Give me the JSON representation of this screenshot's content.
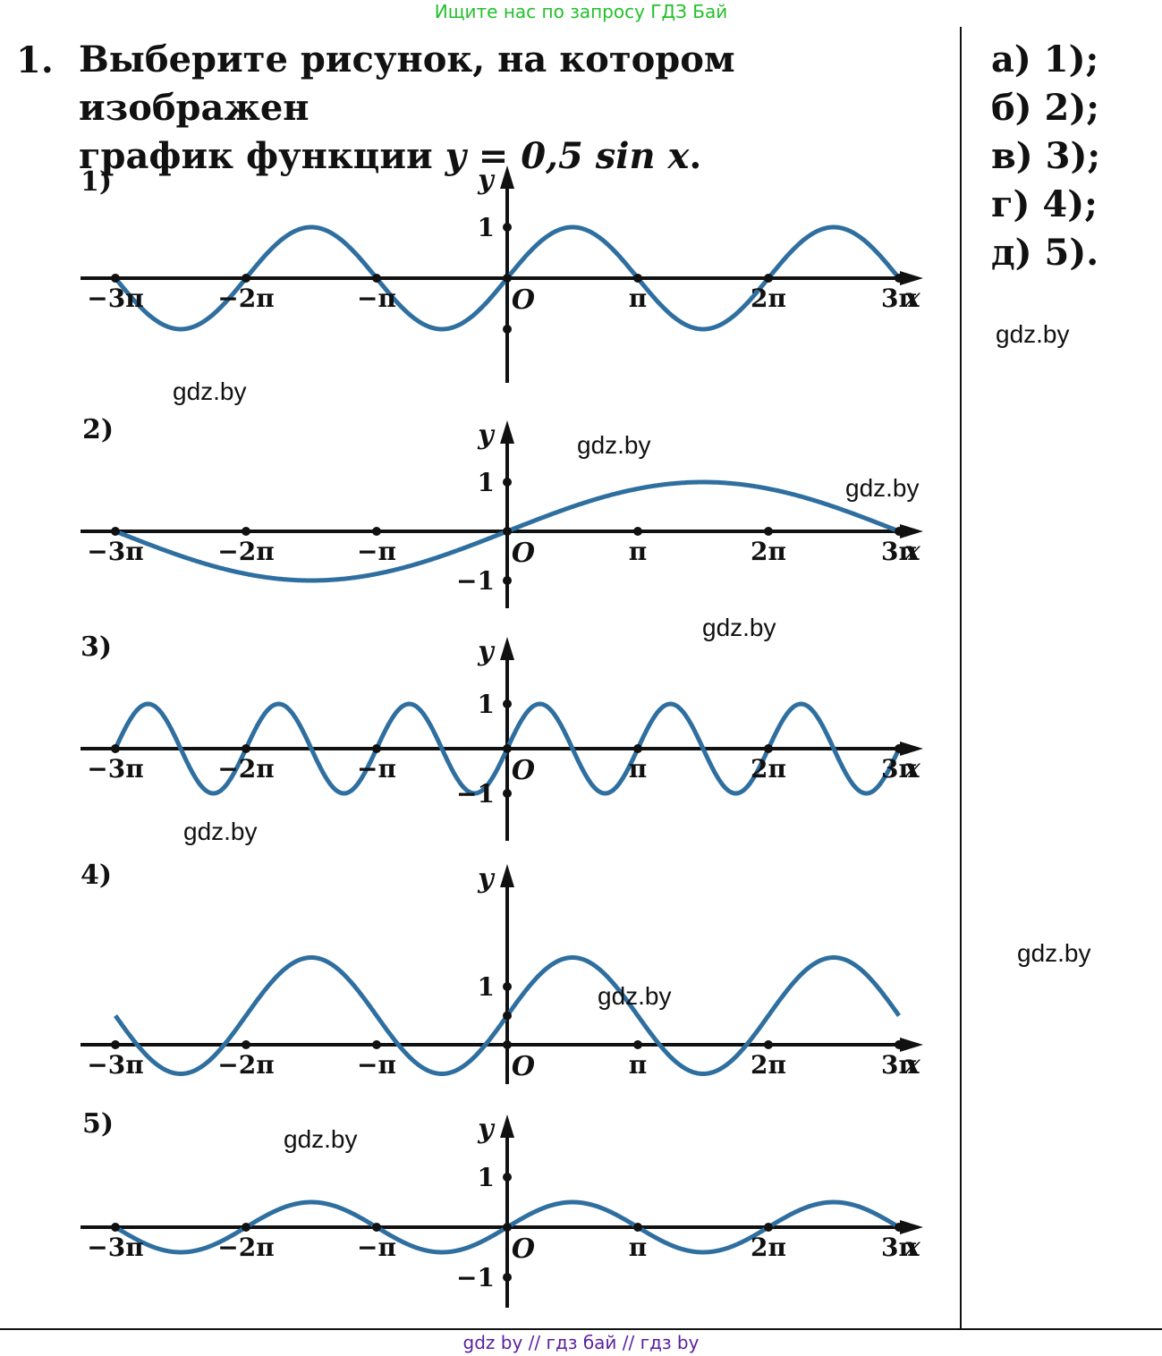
{
  "banner": "Ищите нас по запросу ГДЗ Бай",
  "task": {
    "number": "1.",
    "text_line1": "Выберите рисунок, на котором изображен",
    "text_line2_prefix": "график функции ",
    "text_line2_formula": "y = 0,5 sin x",
    "text_line2_suffix": "."
  },
  "answers": [
    "а) 1);",
    "б) 2);",
    "в) 3);",
    "г) 4);",
    "д) 5)."
  ],
  "watermarks": {
    "w1": "gdz.by",
    "w2": "gdz.by",
    "w3": "gdz.by",
    "w4": "gdz.by",
    "w5": "gdz.by",
    "w6": "gdz.by",
    "w7": "gdz.by",
    "w8": "gdz.by",
    "w9": "gdz.by"
  },
  "footer": "gdz by  //  гдз бай  //  гдз by",
  "colors": {
    "curve": "#2f6fa0",
    "axis": "#111111",
    "banner": "#22c02a",
    "footer": "#5a1fa0"
  },
  "chart_data": [
    {
      "type": "line",
      "label": "1)",
      "function": "y = sin x",
      "x_domain": [
        "-3π",
        "3π"
      ],
      "x_ticks": [
        "−3π",
        "−2π",
        "−π",
        "π",
        "2π",
        "3π"
      ],
      "y_ticks": [
        "1"
      ],
      "origin_label": "O",
      "xlabel": "x",
      "ylabel": "y"
    },
    {
      "type": "line",
      "label": "2)",
      "function": "y = sin(x/3)",
      "x_domain": [
        "-3π",
        "3π"
      ],
      "x_ticks": [
        "−3π",
        "−2π",
        "−π",
        "π",
        "2π",
        "3π"
      ],
      "y_ticks": [
        "1",
        "−1"
      ],
      "origin_label": "O",
      "xlabel": "x",
      "ylabel": "y"
    },
    {
      "type": "line",
      "label": "3)",
      "function": "y = sin 2x",
      "x_domain": [
        "-3π",
        "3π"
      ],
      "x_ticks": [
        "−3π",
        "−2π",
        "−π",
        "π",
        "2π",
        "3π"
      ],
      "y_ticks": [
        "1",
        "−1"
      ],
      "origin_label": "O",
      "xlabel": "x",
      "ylabel": "y"
    },
    {
      "type": "line",
      "label": "4)",
      "function": "y = sin x + 0,5",
      "x_domain": [
        "-3π",
        "3π"
      ],
      "x_ticks": [
        "−3π",
        "−2π",
        "−π",
        "π",
        "2π",
        "3π"
      ],
      "y_ticks": [
        "1"
      ],
      "origin_label": "O",
      "xlabel": "x",
      "ylabel": "y"
    },
    {
      "type": "line",
      "label": "5)",
      "function": "y = 0,5 sin x",
      "x_domain": [
        "-3π",
        "3π"
      ],
      "x_ticks": [
        "−3π",
        "−2π",
        "−π",
        "π",
        "2π",
        "3π"
      ],
      "y_ticks": [
        "1",
        "−1"
      ],
      "origin_label": "O",
      "xlabel": "x",
      "ylabel": "y"
    }
  ]
}
